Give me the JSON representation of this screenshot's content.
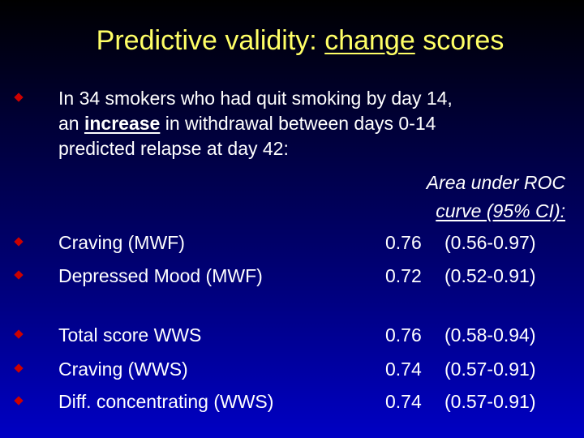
{
  "slide": {
    "title_prefix": "Predictive validity: ",
    "title_underlined": "change",
    "title_suffix": " scores",
    "intro": {
      "line1": "In 34 smokers who had quit smoking by day 14,",
      "line2_prefix": "an ",
      "line2_emphasis": "increase",
      "line2_suffix": " in withdrawal between days 0-14",
      "line3": "predicted relapse at day 42:"
    },
    "column_header": {
      "line1": "Area under ROC",
      "line2": "curve (95% CI):"
    },
    "rows": [
      {
        "label": "Craving (MWF)",
        "auc": "0.76",
        "ci": "(0.56-0.97)"
      },
      {
        "label": "Depressed Mood (MWF)",
        "auc": "0.72",
        "ci": "(0.52-0.91)"
      },
      {
        "label": "Total score WWS",
        "auc": "0.76",
        "ci": "(0.58-0.94)"
      },
      {
        "label": "Craving (WWS)",
        "auc": "0.74",
        "ci": "(0.57-0.91)"
      },
      {
        "label": "Diff. concentrating (WWS)",
        "auc": "0.74",
        "ci": "(0.57-0.91)"
      }
    ],
    "colors": {
      "title": "#ffff66",
      "text": "#ffffff",
      "bullet": "#cc0000",
      "background_top": "#000000",
      "background_bottom": "#0000c4"
    },
    "bullet_icon": "red-diamond-bullet"
  }
}
